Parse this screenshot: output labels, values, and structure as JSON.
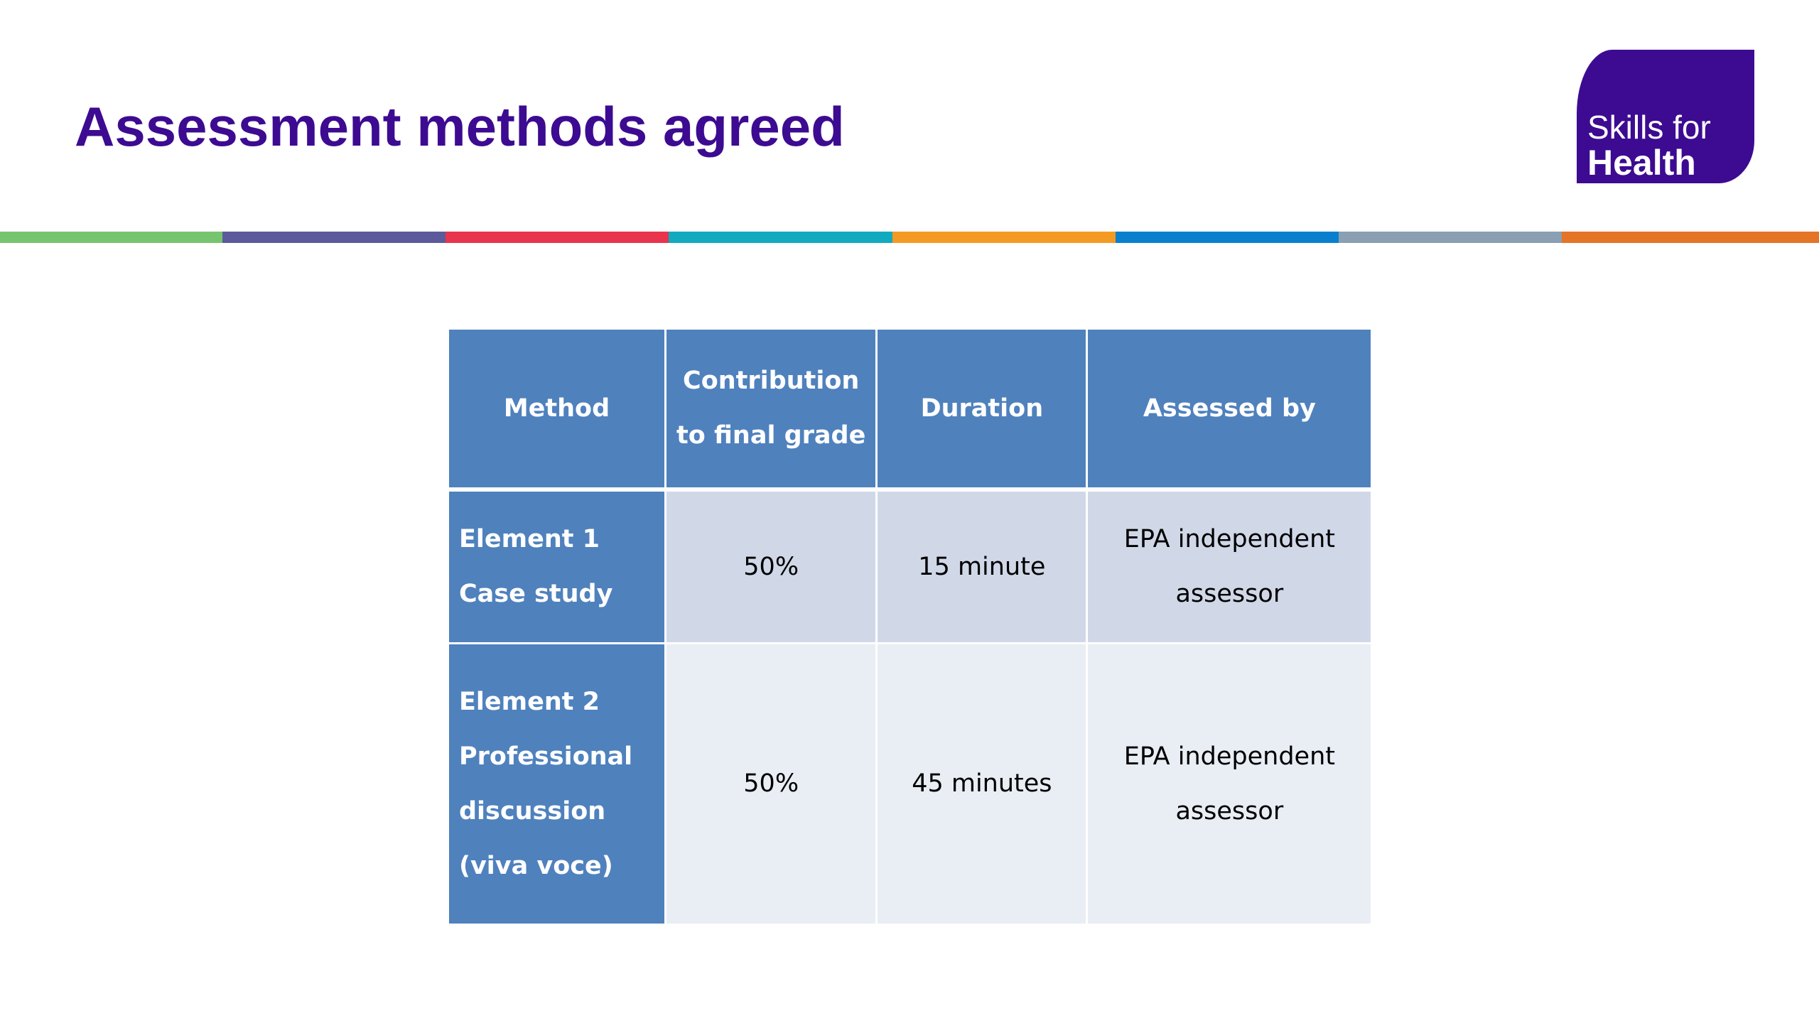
{
  "slide": {
    "title": "Assessment methods agreed",
    "logo": {
      "line1": "Skills for",
      "line2": "Health",
      "color": "#3d0b91"
    },
    "stripe_colors": [
      "#77c46e",
      "#5c5a9b",
      "#e8344d",
      "#12aabf",
      "#f49a23",
      "#0a7fce",
      "#8a9fb1",
      "#e47426"
    ]
  },
  "table": {
    "headers": [
      {
        "lines": [
          "Method"
        ]
      },
      {
        "lines": [
          "Contribution",
          "to final grade"
        ]
      },
      {
        "lines": [
          "Duration"
        ]
      },
      {
        "lines": [
          "Assessed by"
        ]
      }
    ],
    "rows": [
      {
        "method": [
          "Element 1",
          "Case study"
        ],
        "contribution": "50%",
        "duration": "15 minute",
        "assessed_by": [
          "EPA independent",
          "assessor"
        ]
      },
      {
        "method": [
          "Element 2",
          "Professional",
          "discussion",
          "(viva voce)"
        ],
        "contribution": "50%",
        "duration": "45 minutes",
        "assessed_by": [
          "EPA independent",
          "assessor"
        ]
      }
    ],
    "colors": {
      "header": "#4f81bd",
      "row_odd": "#d0d8e8",
      "row_even": "#e9edf4"
    }
  }
}
